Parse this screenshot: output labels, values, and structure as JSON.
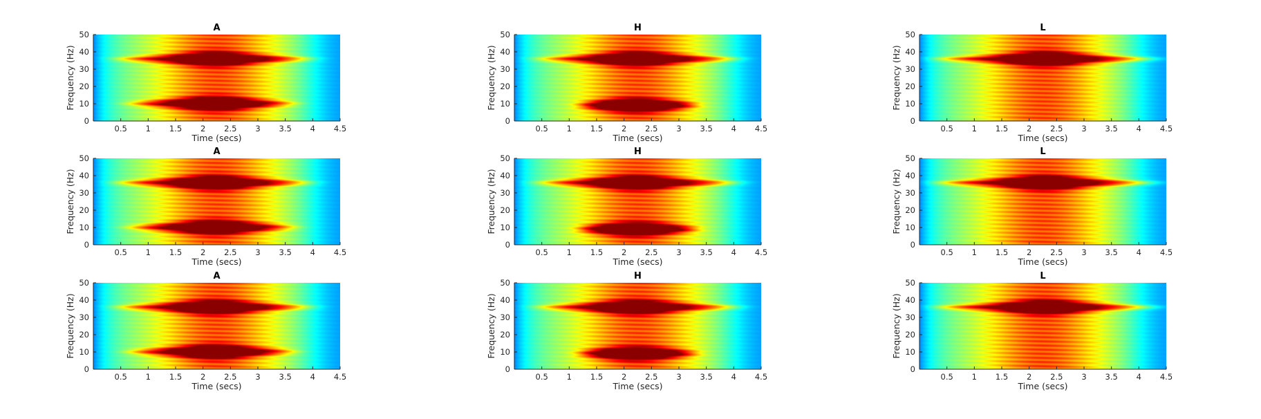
{
  "figure": {
    "grid": "3x3",
    "colormap": "jet",
    "colors": {
      "background": "#ffffff",
      "axis": "#262626",
      "title": "#000000",
      "low_intensity": "#00008f",
      "mid_intensity": "#7fff7f",
      "high_intensity": "#800000"
    }
  },
  "chart_data": [
    {
      "type": "heatmap",
      "title": "A",
      "xlabel": "Time (secs)",
      "ylabel": "Frequency (Hz)",
      "xlim": [
        0,
        4.5
      ],
      "ylim": [
        0,
        50
      ],
      "xticks": [
        "0.5",
        "1",
        "1.5",
        "2",
        "2.5",
        "3",
        "3.5",
        "4",
        "4.5"
      ],
      "yticks": [
        "0",
        "10",
        "20",
        "30",
        "40",
        "50"
      ],
      "bands": [
        {
          "freq_hz": 36,
          "peak_time_s": 2.2,
          "start_s": 0.5,
          "end_s": 3.9,
          "strength": 0.97
        },
        {
          "freq_hz": 10,
          "peak_time_s": 2.2,
          "start_s": 0.7,
          "end_s": 3.6,
          "strength": 0.95
        }
      ]
    },
    {
      "type": "heatmap",
      "title": "H",
      "xlabel": "Time (secs)",
      "ylabel": "Frequency (Hz)",
      "xlim": [
        0,
        4.5
      ],
      "ylim": [
        0,
        50
      ],
      "xticks": [
        "0.5",
        "1",
        "1.5",
        "2",
        "2.5",
        "3",
        "3.5",
        "4",
        "4.5"
      ],
      "yticks": [
        "0",
        "10",
        "20",
        "30",
        "40",
        "50"
      ],
      "bands": [
        {
          "freq_hz": 36,
          "peak_time_s": 2.2,
          "start_s": 0.5,
          "end_s": 4.0,
          "strength": 0.97
        },
        {
          "freq_hz": 9,
          "peak_time_s": 2.2,
          "start_s": 1.2,
          "end_s": 3.3,
          "strength": 0.92
        }
      ]
    },
    {
      "type": "heatmap",
      "title": "L",
      "xlabel": "Time (secs)",
      "ylabel": "Frequency (Hz)",
      "xlim": [
        0,
        4.5
      ],
      "ylim": [
        0,
        50
      ],
      "xticks": [
        "0.5",
        "1",
        "1.5",
        "2",
        "2.5",
        "3",
        "3.5",
        "4",
        "4.5"
      ],
      "yticks": [
        "0",
        "10",
        "20",
        "30",
        "40",
        "50"
      ],
      "bands": [
        {
          "freq_hz": 36,
          "peak_time_s": 2.3,
          "start_s": 0.4,
          "end_s": 4.2,
          "strength": 1.0
        }
      ]
    },
    {
      "type": "heatmap",
      "title": "A",
      "xlabel": "Time (secs)",
      "ylabel": "Frequency (Hz)",
      "xlim": [
        0,
        4.5
      ],
      "ylim": [
        0,
        50
      ],
      "xticks": [
        "0.5",
        "1",
        "1.5",
        "2",
        "2.5",
        "3",
        "3.5",
        "4",
        "4.5"
      ],
      "yticks": [
        "0",
        "10",
        "20",
        "30",
        "40",
        "50"
      ],
      "bands": [
        {
          "freq_hz": 36,
          "peak_time_s": 2.2,
          "start_s": 0.5,
          "end_s": 3.9,
          "strength": 0.97
        },
        {
          "freq_hz": 10,
          "peak_time_s": 2.2,
          "start_s": 0.7,
          "end_s": 3.6,
          "strength": 0.95
        }
      ]
    },
    {
      "type": "heatmap",
      "title": "H",
      "xlabel": "Time (secs)",
      "ylabel": "Frequency (Hz)",
      "xlim": [
        0,
        4.5
      ],
      "ylim": [
        0,
        50
      ],
      "xticks": [
        "0.5",
        "1",
        "1.5",
        "2",
        "2.5",
        "3",
        "3.5",
        "4",
        "4.5"
      ],
      "yticks": [
        "0",
        "10",
        "20",
        "30",
        "40",
        "50"
      ],
      "bands": [
        {
          "freq_hz": 36,
          "peak_time_s": 2.2,
          "start_s": 0.5,
          "end_s": 4.0,
          "strength": 0.97
        },
        {
          "freq_hz": 9,
          "peak_time_s": 2.2,
          "start_s": 1.2,
          "end_s": 3.3,
          "strength": 0.9
        }
      ]
    },
    {
      "type": "heatmap",
      "title": "L",
      "xlabel": "Time (secs)",
      "ylabel": "Frequency (Hz)",
      "xlim": [
        0,
        4.5
      ],
      "ylim": [
        0,
        50
      ],
      "xticks": [
        "0.5",
        "1",
        "1.5",
        "2",
        "2.5",
        "3",
        "3.5",
        "4",
        "4.5"
      ],
      "yticks": [
        "0",
        "10",
        "20",
        "30",
        "40",
        "50"
      ],
      "bands": [
        {
          "freq_hz": 36,
          "peak_time_s": 2.3,
          "start_s": 0.4,
          "end_s": 4.2,
          "strength": 1.0
        }
      ]
    },
    {
      "type": "heatmap",
      "title": "A",
      "xlabel": "Time (secs)",
      "ylabel": "Frequency (Hz)",
      "xlim": [
        0,
        4.5
      ],
      "ylim": [
        0,
        50
      ],
      "xticks": [
        "0.5",
        "1",
        "1.5",
        "2",
        "2.5",
        "3",
        "3.5",
        "4",
        "4.5"
      ],
      "yticks": [
        "0",
        "10",
        "20",
        "30",
        "40",
        "50"
      ],
      "bands": [
        {
          "freq_hz": 36,
          "peak_time_s": 2.2,
          "start_s": 0.5,
          "end_s": 3.9,
          "strength": 0.97
        },
        {
          "freq_hz": 10,
          "peak_time_s": 2.2,
          "start_s": 0.7,
          "end_s": 3.6,
          "strength": 0.95
        }
      ]
    },
    {
      "type": "heatmap",
      "title": "H",
      "xlabel": "Time (secs)",
      "ylabel": "Frequency (Hz)",
      "xlim": [
        0,
        4.5
      ],
      "ylim": [
        0,
        50
      ],
      "xticks": [
        "0.5",
        "1",
        "1.5",
        "2",
        "2.5",
        "3",
        "3.5",
        "4",
        "4.5"
      ],
      "yticks": [
        "0",
        "10",
        "20",
        "30",
        "40",
        "50"
      ],
      "bands": [
        {
          "freq_hz": 36,
          "peak_time_s": 2.2,
          "start_s": 0.5,
          "end_s": 4.0,
          "strength": 0.97
        },
        {
          "freq_hz": 9,
          "peak_time_s": 2.2,
          "start_s": 1.2,
          "end_s": 3.3,
          "strength": 0.88
        }
      ]
    },
    {
      "type": "heatmap",
      "title": "L",
      "xlabel": "Time (secs)",
      "ylabel": "Frequency (Hz)",
      "xlim": [
        0,
        4.5
      ],
      "ylim": [
        0,
        50
      ],
      "xticks": [
        "0.5",
        "1",
        "1.5",
        "2",
        "2.5",
        "3",
        "3.5",
        "4",
        "4.5"
      ],
      "yticks": [
        "0",
        "10",
        "20",
        "30",
        "40",
        "50"
      ],
      "bands": [
        {
          "freq_hz": 36,
          "peak_time_s": 2.3,
          "start_s": 0.4,
          "end_s": 4.2,
          "strength": 1.0
        }
      ]
    }
  ]
}
